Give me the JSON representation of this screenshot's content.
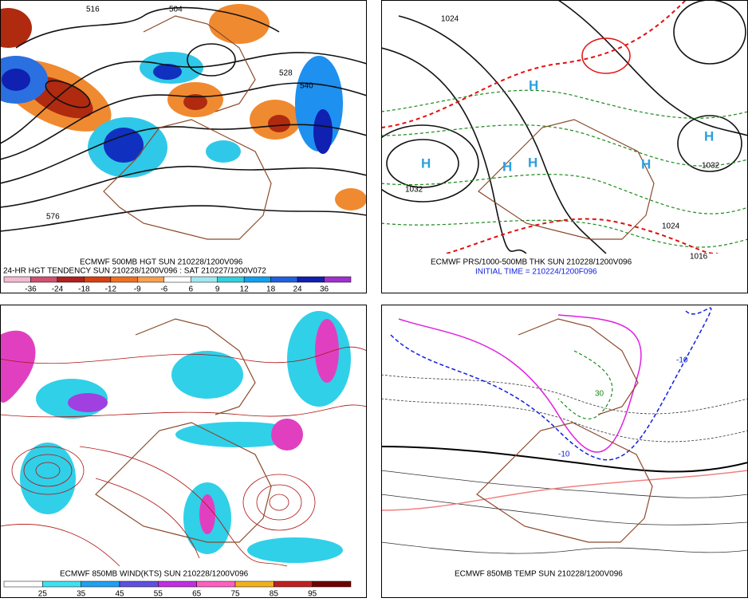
{
  "panels": [
    {
      "captions": [
        "ECMWF 500MB HGT SUN 210228/1200V096",
        "24-HR HGT TENDENCY SUN 210228/1200V096 : SAT 210227/1200V072"
      ],
      "contour_labels": [
        "516",
        "504",
        "528",
        "540",
        "576"
      ],
      "colorbar_labels": [
        "-36",
        "-24",
        "-18",
        "-12",
        "-9",
        "-6",
        "6",
        "9",
        "12",
        "18",
        "24",
        "36"
      ]
    },
    {
      "captions": [
        "ECMWF PRS/1000-500MB THK SUN 210228/1200V096",
        "INITIAL TIME = 210224/1200F096"
      ],
      "contour_labels": [
        "1024",
        "1032",
        "1032",
        "1024",
        "1016"
      ],
      "markers": [
        "H",
        "H",
        "H",
        "H",
        "H",
        "H"
      ]
    },
    {
      "captions": [
        "ECMWF 850MB WIND(KTS) SUN 210228/1200V096"
      ],
      "colorbar_labels": [
        "25",
        "35",
        "45",
        "55",
        "65",
        "75",
        "85",
        "95"
      ]
    },
    {
      "captions": [
        "ECMWF 850MB TEMP SUN 210228/1200V096"
      ],
      "contour_labels": [
        "-10",
        "-10",
        "30"
      ]
    }
  ]
}
